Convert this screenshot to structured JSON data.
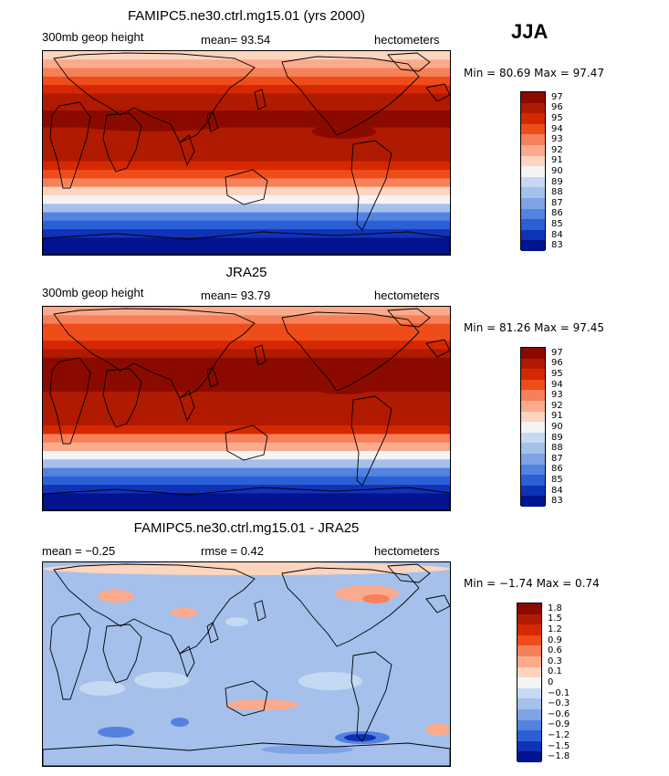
{
  "season": "JJA",
  "chart_data": [
    {
      "type": "heatmap",
      "title": "FAMIPC5.ne30.ctrl.mg15.01 (yrs 2000)",
      "left_label": "300mb geop height",
      "center_label": "mean=  93.54",
      "right_label": "hectometers",
      "min_max": "Min =  80.69 Max =  97.47",
      "levels": [
        "97",
        "96",
        "95",
        "94",
        "93",
        "92",
        "91",
        "90",
        "89",
        "88",
        "87",
        "86",
        "85",
        "84",
        "83"
      ],
      "colors": [
        "#8b0a00",
        "#b01a00",
        "#d62800",
        "#ee4d1a",
        "#f6805a",
        "#fbab8c",
        "#fdd4bd",
        "#f4f4f4",
        "#c6d9f2",
        "#a4c0eb",
        "#7ea3e6",
        "#5482e0",
        "#2b5fd6",
        "#1032b8",
        "#00148f"
      ],
      "profile": [
        91.5,
        92.5,
        93.3,
        94,
        95,
        95.8,
        96.5,
        96.8,
        96.6,
        96.4,
        96.3,
        96.2,
        96.1,
        95.5,
        94.5,
        93,
        91.5,
        89.8,
        88,
        86.3,
        84.8,
        83.6,
        82.8,
        82
      ]
    },
    {
      "type": "heatmap",
      "title": "JRA25",
      "left_label": "300mb geop height",
      "center_label": "mean=  93.79",
      "right_label": "hectometers",
      "min_max": "Min =  81.26 Max =  97.45",
      "levels": [
        "97",
        "96",
        "95",
        "94",
        "93",
        "92",
        "91",
        "90",
        "89",
        "88",
        "87",
        "86",
        "85",
        "84",
        "83"
      ],
      "colors": [
        "#8b0a00",
        "#b01a00",
        "#d62800",
        "#ee4d1a",
        "#f6805a",
        "#fbab8c",
        "#fdd4bd",
        "#f4f4f4",
        "#c6d9f2",
        "#a4c0eb",
        "#7ea3e6",
        "#5482e0",
        "#2b5fd6",
        "#1032b8",
        "#00148f"
      ],
      "profile": [
        91.8,
        92.8,
        93.6,
        94.3,
        95.2,
        96,
        96.7,
        97.1,
        96.9,
        96.6,
        96.4,
        96.3,
        96.1,
        95.6,
        94.6,
        93.2,
        91.6,
        89.9,
        88.1,
        86.4,
        84.9,
        83.7,
        82.9,
        82.2
      ]
    },
    {
      "type": "heatmap",
      "title": "FAMIPC5.ne30.ctrl.mg15.01 - JRA25",
      "left_label": "mean =  −0.25",
      "center_label": "rmse =    0.42",
      "right_label": "hectometers",
      "min_max": "Min =  −1.74 Max =   0.74",
      "levels": [
        "1.8",
        "1.5",
        "1.2",
        "0.9",
        "0.6",
        "0.3",
        "0.1",
        "0",
        "−0.1",
        "−0.3",
        "−0.6",
        "−0.9",
        "−1.2",
        "−1.5",
        "−1.8"
      ],
      "colors": [
        "#8b0a00",
        "#b01a00",
        "#d62800",
        "#ee4d1a",
        "#f6805a",
        "#fbab8c",
        "#fdd4bd",
        "#f4f4f4",
        "#c6d9f2",
        "#a4c0eb",
        "#7ea3e6",
        "#5482e0",
        "#2b5fd6",
        "#1032b8",
        "#00148f"
      ]
    }
  ]
}
